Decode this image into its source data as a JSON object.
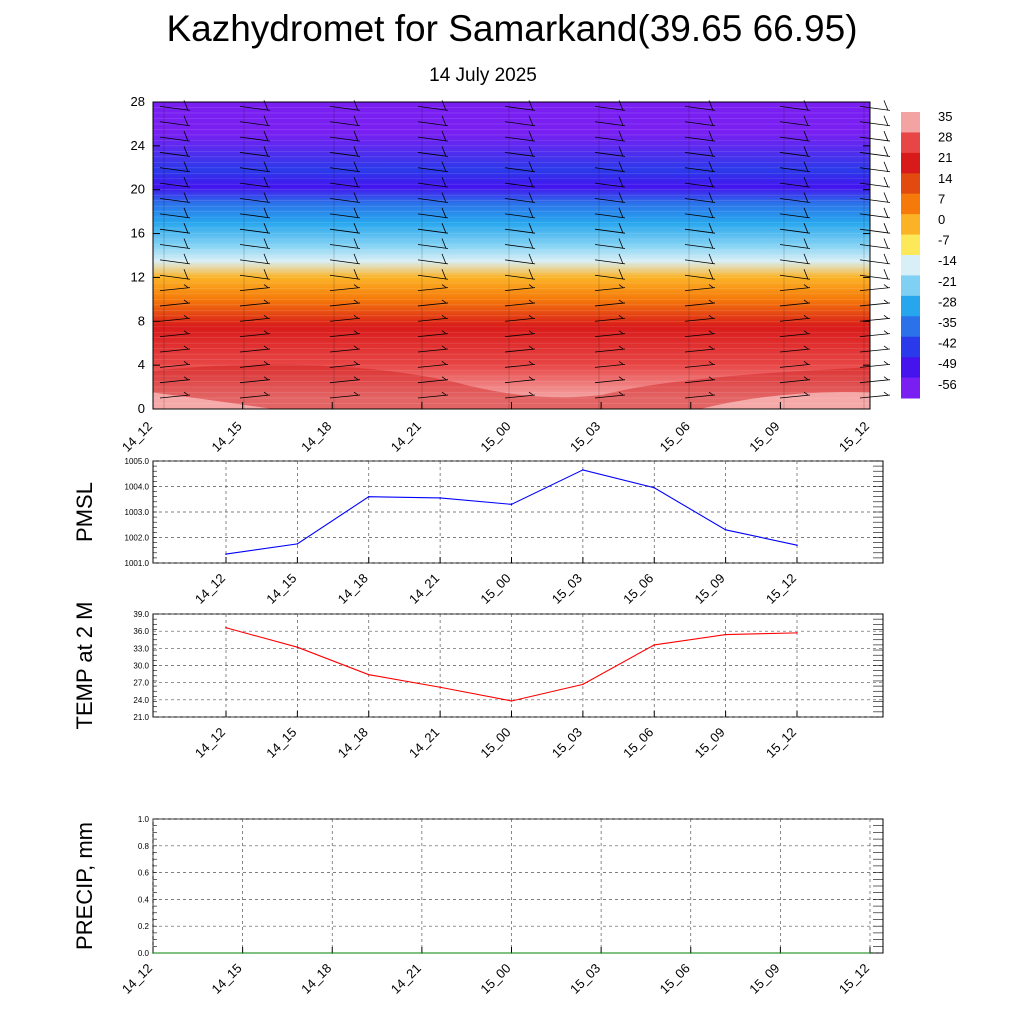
{
  "title": "Kazhydromet for Samarkand(39.65 66.95)",
  "subtitle": "14 July 2025",
  "time_labels": [
    "14_12",
    "14_15",
    "14_18",
    "14_21",
    "15_00",
    "15_03",
    "15_06",
    "15_09",
    "15_12"
  ],
  "chart_data": [
    {
      "type": "heatmap",
      "name": "temperature-vs-height",
      "ylim": [
        0,
        28
      ],
      "yticks": [
        0,
        4,
        8,
        12,
        16,
        20,
        24,
        28
      ],
      "x": [
        "14_12",
        "14_15",
        "14_18",
        "14_21",
        "15_00",
        "15_03",
        "15_06",
        "15_09",
        "15_12"
      ],
      "colorbar": {
        "labels": [
          35,
          28,
          21,
          14,
          7,
          0,
          -7,
          -14,
          -21,
          -28,
          -35,
          -42,
          -49,
          -56
        ],
        "colors": [
          "#f4a3a3",
          "#e84646",
          "#d91a1a",
          "#e34a0f",
          "#f57a0a",
          "#fbb325",
          "#fde85a",
          "#d8eff7",
          "#7fd0f3",
          "#27a6ee",
          "#2b72ea",
          "#2a3aea",
          "#4413ee",
          "#7a1ff2"
        ]
      },
      "bands": [
        {
          "y": [
            0,
            2
          ],
          "value": 35
        },
        {
          "y": [
            2,
            6
          ],
          "value": 28
        },
        {
          "y": [
            6,
            9
          ],
          "value": 21
        },
        {
          "y": [
            9,
            11
          ],
          "value": 7
        },
        {
          "y": [
            11,
            13
          ],
          "value": 0
        },
        {
          "y": [
            13,
            14
          ],
          "value": -14
        },
        {
          "y": [
            14,
            16
          ],
          "value": -21
        },
        {
          "y": [
            16,
            18
          ],
          "value": -28
        },
        {
          "y": [
            18,
            19.5
          ],
          "value": -35
        },
        {
          "y": [
            19.5,
            21
          ],
          "value": -49
        },
        {
          "y": [
            21,
            22.5
          ],
          "value": -42
        },
        {
          "y": [
            22.5,
            28
          ],
          "value": -56
        }
      ]
    },
    {
      "type": "line",
      "name": "PMSL",
      "ylabel": "PMSL",
      "ylim": [
        1001.0,
        1005.0
      ],
      "yticks": [
        "1001.0",
        "1002.0",
        "1003.0",
        "1004.0",
        "1005.0"
      ],
      "x": [
        "14_12",
        "14_15",
        "14_18",
        "14_21",
        "15_00",
        "15_03",
        "15_06",
        "15_09",
        "15_12"
      ],
      "values": [
        1001.35,
        1001.75,
        1003.6,
        1003.55,
        1003.3,
        1004.65,
        1003.95,
        1002.3,
        1001.7
      ],
      "color": "#0000ff"
    },
    {
      "type": "line",
      "name": "TEMP at 2 M",
      "ylabel": "TEMP at 2 M",
      "ylim": [
        21.0,
        39.0
      ],
      "yticks": [
        "21.0",
        "24.0",
        "27.0",
        "30.0",
        "33.0",
        "36.0",
        "39.0"
      ],
      "x": [
        "14_12",
        "14_15",
        "14_18",
        "14_21",
        "15_00",
        "15_03",
        "15_06",
        "15_09",
        "15_12"
      ],
      "values": [
        36.6,
        33.2,
        28.4,
        26.2,
        23.8,
        26.7,
        33.6,
        35.4,
        35.7
      ],
      "color": "#ff0000"
    },
    {
      "type": "line",
      "name": "PRECIP, mm",
      "ylabel": "PRECIP, mm",
      "ylim": [
        0.0,
        1.0
      ],
      "yticks": [
        "0.0",
        "0.2",
        "0.4",
        "0.6",
        "0.8",
        "1.0"
      ],
      "x": [
        "14_12",
        "14_15",
        "14_18",
        "14_21",
        "15_00",
        "15_03",
        "15_06",
        "15_09",
        "15_12"
      ],
      "values": [
        0,
        0,
        0,
        0,
        0,
        0,
        0,
        0,
        0
      ],
      "color": "#008000"
    }
  ]
}
